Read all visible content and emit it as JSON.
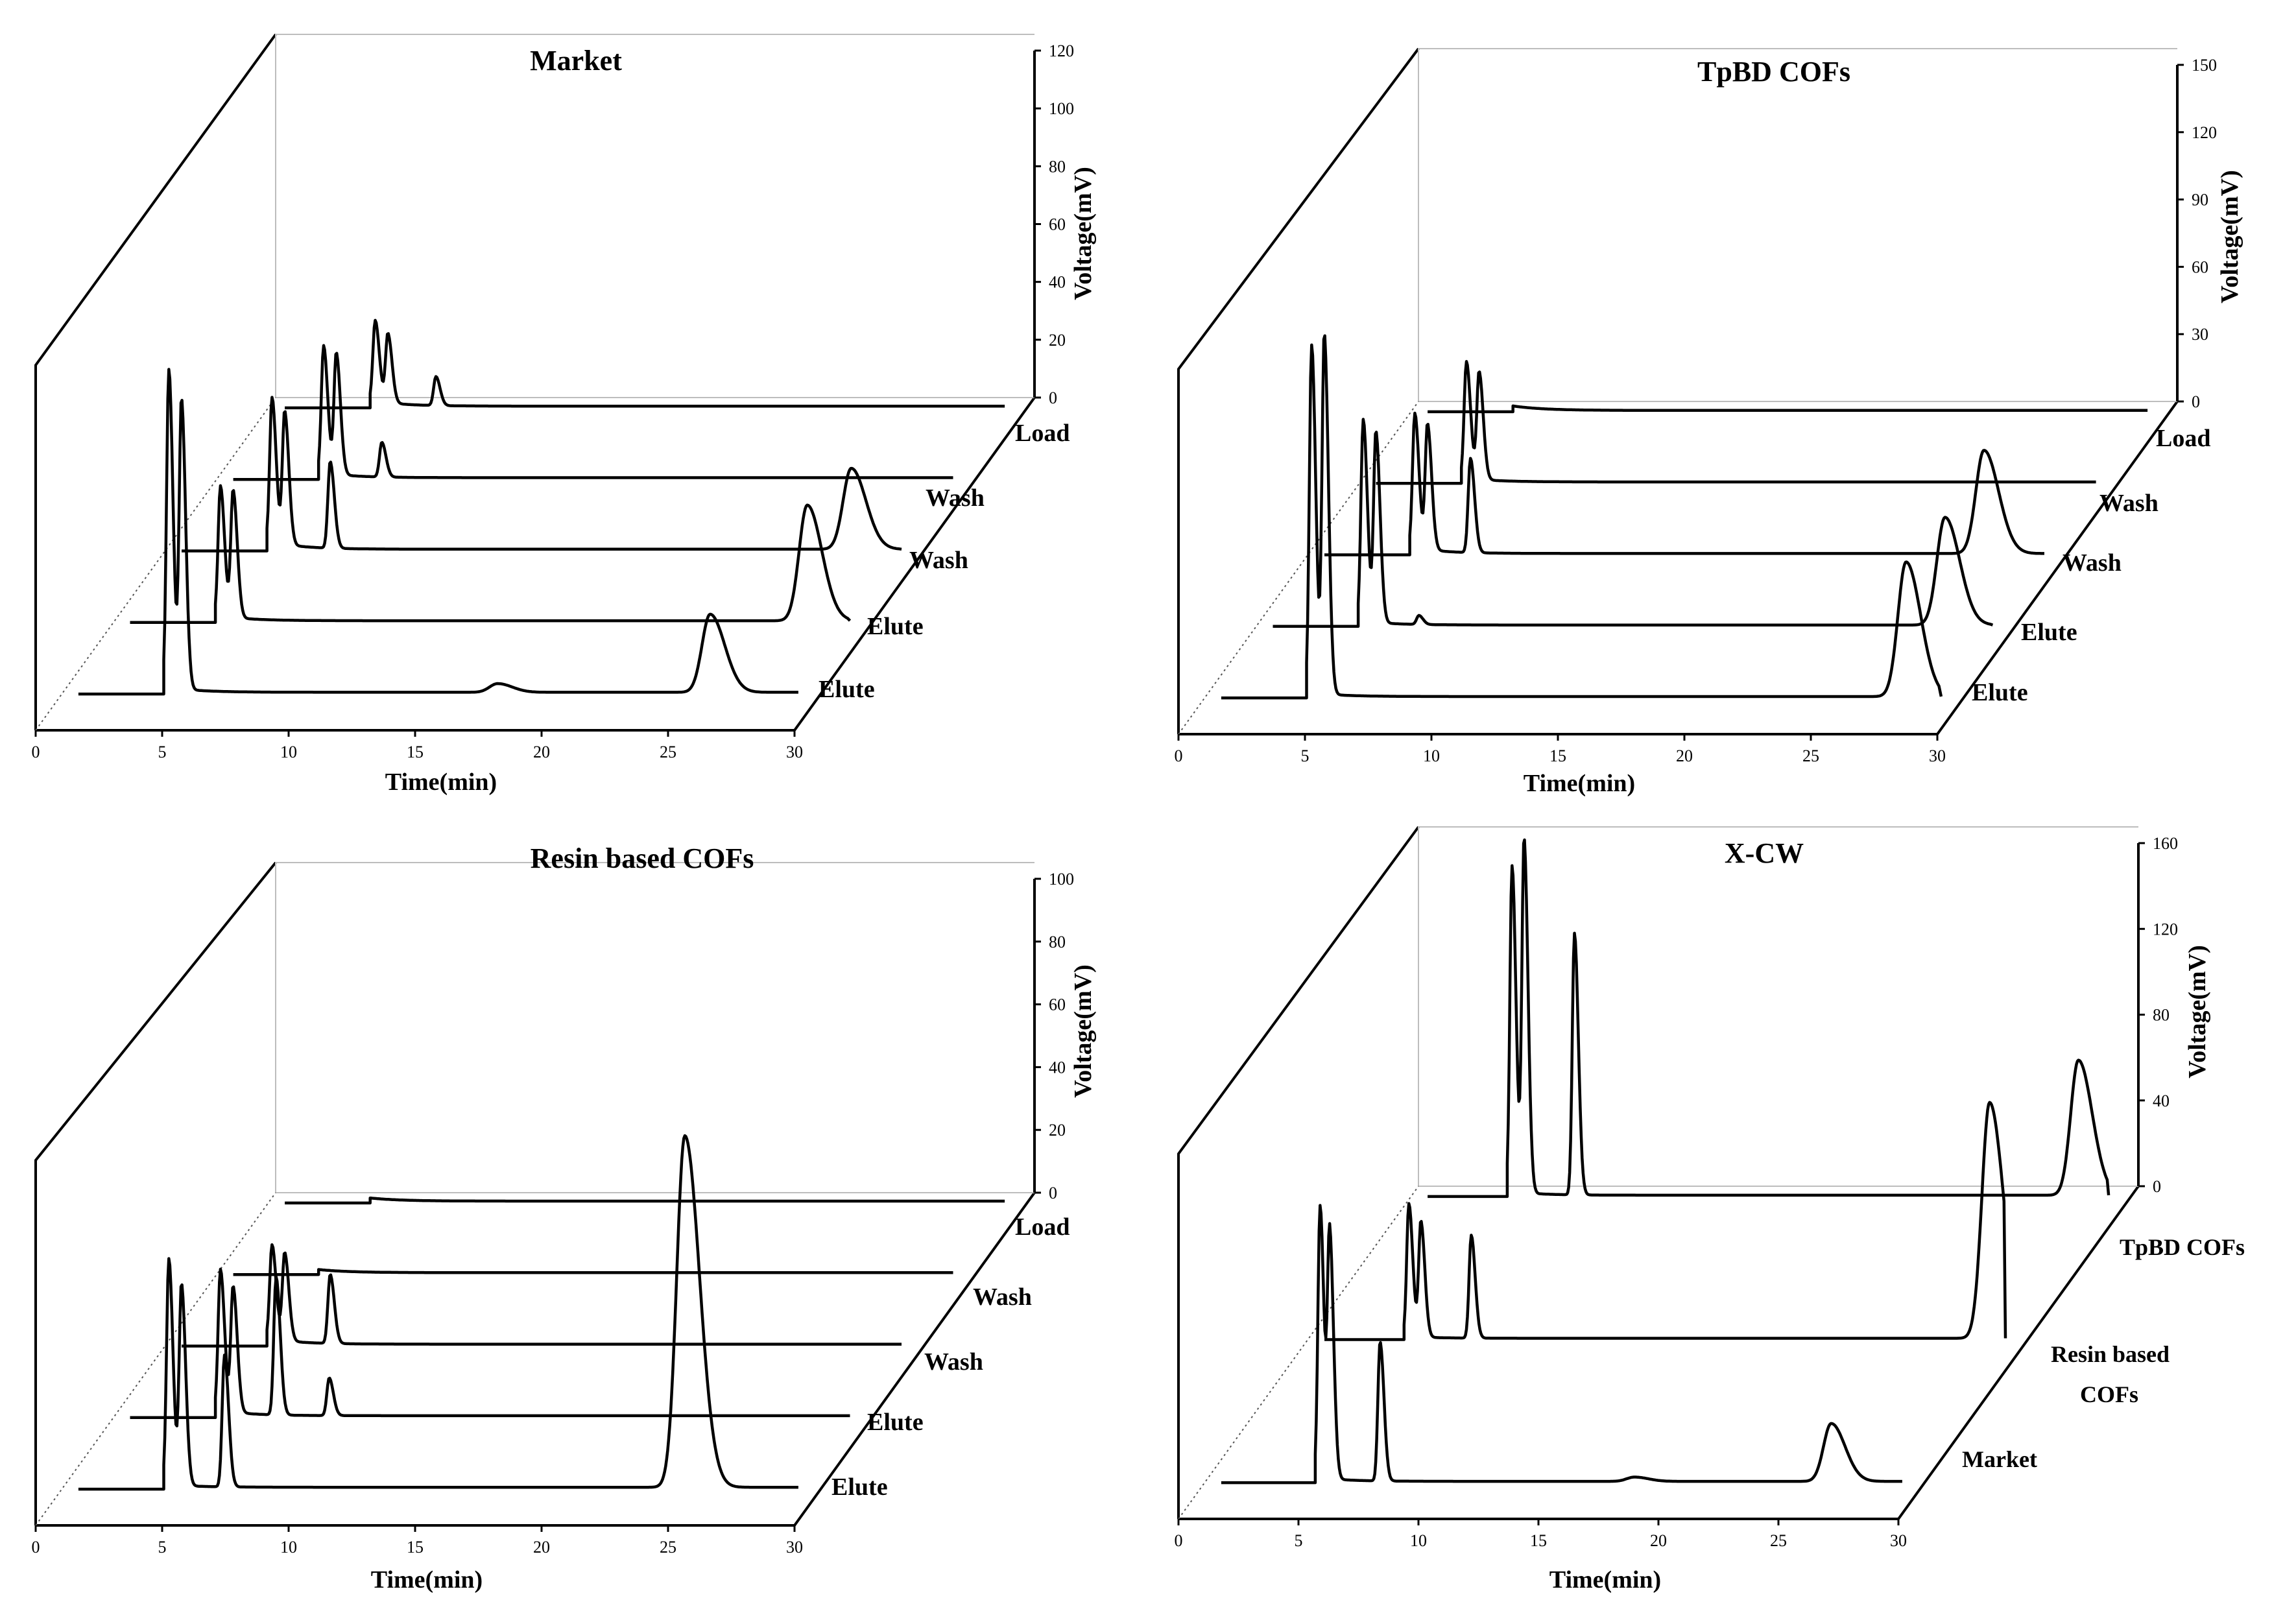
{
  "chart_data": [
    {
      "type": "line",
      "title": "Market",
      "xlabel": "Time(min)",
      "ylabel": "Voltage(mV)",
      "xlim": [
        0,
        30
      ],
      "x_ticks": [
        "0",
        "5",
        "10",
        "15",
        "20",
        "25",
        "30"
      ],
      "ylim": [
        0,
        120
      ],
      "y_ticks": [
        "0",
        "20",
        "40",
        "60",
        "80",
        "100",
        "120"
      ],
      "series": [
        {
          "name": "Elute",
          "baseline": 2,
          "start": 4.4,
          "peaks": [
            [
              4.6,
              110
            ],
            [
              5.1,
              100
            ],
            [
              17.6,
              3
            ],
            [
              26.0,
              27
            ]
          ]
        },
        {
          "name": "Elute",
          "baseline": 2,
          "start": 4.4,
          "peaks": [
            [
              4.6,
              45
            ],
            [
              5.1,
              44
            ],
            [
              27.8,
              40
            ]
          ]
        },
        {
          "name": "Wash",
          "baseline": 3,
          "start": 4.4,
          "peaks": [
            [
              4.6,
              50
            ],
            [
              5.1,
              46
            ],
            [
              6.9,
              30
            ],
            [
              27.5,
              28
            ]
          ]
        },
        {
          "name": "Wash",
          "baseline": 2,
          "start": 4.4,
          "peaks": [
            [
              4.6,
              44
            ],
            [
              5.1,
              42
            ],
            [
              6.9,
              12
            ]
          ]
        },
        {
          "name": "Load",
          "baseline": 2,
          "start": 4.4,
          "peaks": [
            [
              4.6,
              28
            ],
            [
              5.1,
              24
            ],
            [
              7.0,
              10
            ]
          ]
        }
      ]
    },
    {
      "type": "line",
      "title": "TpBD COFs",
      "xlabel": "Time(min)",
      "ylabel": "Voltage(mV)",
      "xlim": [
        0,
        30
      ],
      "x_ticks": [
        "0",
        "5",
        "10",
        "15",
        "20",
        "25",
        "30"
      ],
      "ylim": [
        0,
        150
      ],
      "y_ticks": [
        "0",
        "30",
        "60",
        "90",
        "120",
        "150"
      ],
      "series": [
        {
          "name": "Elute",
          "baseline": 2,
          "start": 4.4,
          "peaks": [
            [
              4.6,
              155
            ],
            [
              5.1,
              160
            ],
            [
              28.1,
              60
            ]
          ]
        },
        {
          "name": "Elute",
          "baseline": 2,
          "start": 4.4,
          "peaks": [
            [
              4.6,
              90
            ],
            [
              5.1,
              85
            ],
            [
              6.8,
              4
            ],
            [
              27.6,
              48
            ]
          ]
        },
        {
          "name": "Wash",
          "baseline": 3,
          "start": 4.4,
          "peaks": [
            [
              4.6,
              60
            ],
            [
              5.1,
              56
            ],
            [
              6.8,
              42
            ],
            [
              27.1,
              46
            ]
          ]
        },
        {
          "name": "Wash",
          "baseline": 2,
          "start": 4.4,
          "peaks": [
            [
              4.6,
              52
            ],
            [
              5.1,
              48
            ]
          ]
        },
        {
          "name": "Load",
          "baseline": 2,
          "start": 4.4,
          "peaks": []
        }
      ]
    },
    {
      "type": "line",
      "title": "Resin based COFs",
      "xlabel": "Time(min)",
      "ylabel": "Voltage(mV)",
      "xlim": [
        0,
        30
      ],
      "x_ticks": [
        "0",
        "5",
        "10",
        "15",
        "20",
        "25",
        "30"
      ],
      "ylim": [
        0,
        100
      ],
      "y_ticks": [
        "0",
        "20",
        "40",
        "60",
        "80",
        "100"
      ],
      "series": [
        {
          "name": "Elute",
          "baseline": 1,
          "start": 4.4,
          "peaks": [
            [
              4.6,
              72
            ],
            [
              5.1,
              64
            ],
            [
              6.8,
              42
            ],
            [
              25.0,
              112
            ]
          ]
        },
        {
          "name": "Elute",
          "baseline": 2,
          "start": 4.4,
          "peaks": [
            [
              4.6,
              45
            ],
            [
              5.1,
              40
            ],
            [
              6.8,
              44
            ],
            [
              8.9,
              12
            ]
          ]
        },
        {
          "name": "Wash",
          "baseline": 2,
          "start": 4.4,
          "peaks": [
            [
              4.6,
              30
            ],
            [
              5.1,
              28
            ],
            [
              6.9,
              22
            ]
          ]
        },
        {
          "name": "Wash",
          "baseline": 1,
          "start": 4.4,
          "peaks": []
        },
        {
          "name": "Load",
          "baseline": 1,
          "start": 4.4,
          "peaks": []
        }
      ]
    },
    {
      "type": "line",
      "title": "X-CW",
      "xlabel": "Time(min)",
      "ylabel": "Voltage(mV)",
      "xlim": [
        0,
        30
      ],
      "x_ticks": [
        "0",
        "5",
        "10",
        "15",
        "20",
        "25",
        "30"
      ],
      "ylim": [
        0,
        160
      ],
      "y_ticks": [
        "0",
        "40",
        "80",
        "120",
        "160"
      ],
      "series": [
        {
          "name": "Market",
          "baseline": 2,
          "start": 5.0,
          "peaks": [
            [
              5.2,
              127
            ],
            [
              5.6,
              113
            ],
            [
              7.7,
              65
            ],
            [
              18.3,
              2
            ],
            [
              26.5,
              27
            ]
          ]
        },
        {
          "name": "Resin based COFs",
          "baseline": 1,
          "start": 4.4,
          "peaks": [
            [
              4.6,
              62
            ],
            [
              5.1,
              54
            ],
            [
              7.2,
              48
            ],
            [
              28.8,
              110
            ]
          ]
        },
        {
          "name": "TpBD COFs",
          "baseline": 2,
          "start": 4.4,
          "peaks": [
            [
              4.6,
              152
            ],
            [
              5.1,
              165
            ],
            [
              7.2,
              122
            ],
            [
              28.2,
              63
            ]
          ]
        }
      ]
    }
  ],
  "panels": [
    {
      "title": "Market",
      "xlabel": "Time(min)",
      "ylabel": "Voltage(mV)",
      "x_ticks": [
        "0",
        "5",
        "10",
        "15",
        "20",
        "25",
        "30"
      ],
      "y_ticks": [
        "0",
        "20",
        "40",
        "60",
        "80",
        "100",
        "120"
      ],
      "series_labels": [
        "Elute",
        "Elute",
        "Wash",
        "Wash",
        "Load"
      ]
    },
    {
      "title": "TpBD COFs",
      "xlabel": "Time(min)",
      "ylabel": "Voltage(mV)",
      "x_ticks": [
        "0",
        "5",
        "10",
        "15",
        "20",
        "25",
        "30"
      ],
      "y_ticks": [
        "0",
        "30",
        "60",
        "90",
        "120",
        "150"
      ],
      "series_labels": [
        "Elute",
        "Elute",
        "Wash",
        "Wash",
        "Load"
      ]
    },
    {
      "title": "Resin based COFs",
      "xlabel": "Time(min)",
      "ylabel": "Voltage(mV)",
      "x_ticks": [
        "0",
        "5",
        "10",
        "15",
        "20",
        "25",
        "30"
      ],
      "y_ticks": [
        "0",
        "20",
        "40",
        "60",
        "80",
        "100"
      ],
      "series_labels": [
        "Elute",
        "Elute",
        "Wash",
        "Wash",
        "Load"
      ]
    },
    {
      "title": "X-CW",
      "xlabel": "Time(min)",
      "ylabel": "Voltage(mV)",
      "x_ticks": [
        "0",
        "5",
        "10",
        "15",
        "20",
        "25",
        "30"
      ],
      "y_ticks": [
        "0",
        "40",
        "80",
        "120",
        "160"
      ],
      "series_labels": [
        "Market",
        "Resin based COFs",
        "TpBD COFs"
      ]
    }
  ]
}
